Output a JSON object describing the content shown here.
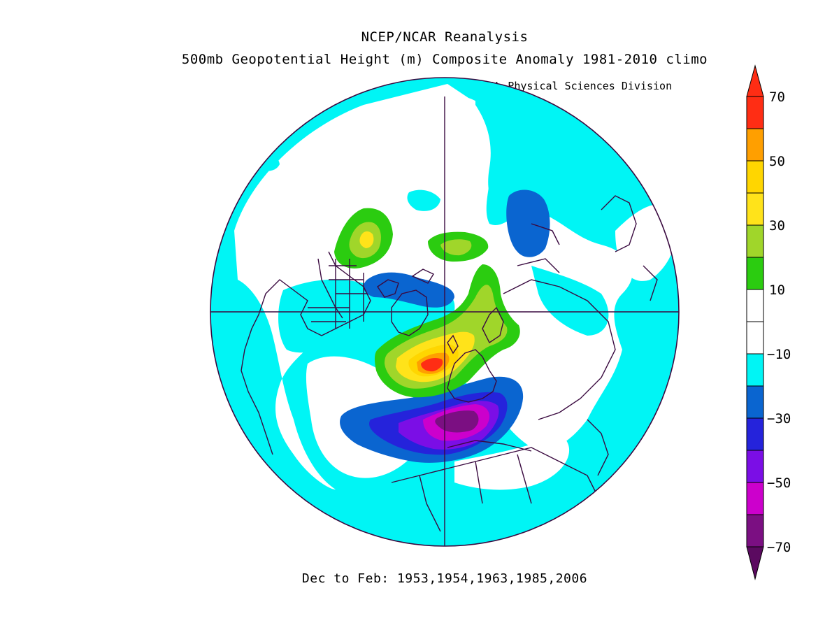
{
  "header": {
    "source": "NCEP/NCAR Reanalysis",
    "variable": "500mb Geopotential Height (m) Composite Anomaly 1981-2010 climo",
    "credit": "NOAA/ESRL Physical Sciences Division"
  },
  "footer": {
    "period": "Dec to Feb: 1953,1954,1963,1985,2006"
  },
  "colorbar": {
    "labels": [
      "70",
      "50",
      "30",
      "10",
      "−10",
      "−30",
      "−50",
      "−70"
    ],
    "colors": {
      "gt70": "#ff2d14",
      "60to70": "#ff2d14",
      "50to60": "#ff9f00",
      "40to50": "#ffd600",
      "30to40": "#ffe31a",
      "20to30": "#a0d62a",
      "10to20": "#2bcc10",
      "0to10": "#ffffff",
      "m10to0": "#ffffff",
      "m20tom10": "#00f5f5",
      "m30tom20": "#0a65d0",
      "m40tom30": "#2523db",
      "m50tom40": "#7b0ee6",
      "m60tom50": "#cc00cc",
      "m70tom60": "#7b0f82",
      "ltm70": "#5b0a60"
    }
  },
  "map": {
    "projection": "north-polar-stereographic",
    "ocean_color": "#00f5f5",
    "coast_color": "#3a0a40"
  }
}
